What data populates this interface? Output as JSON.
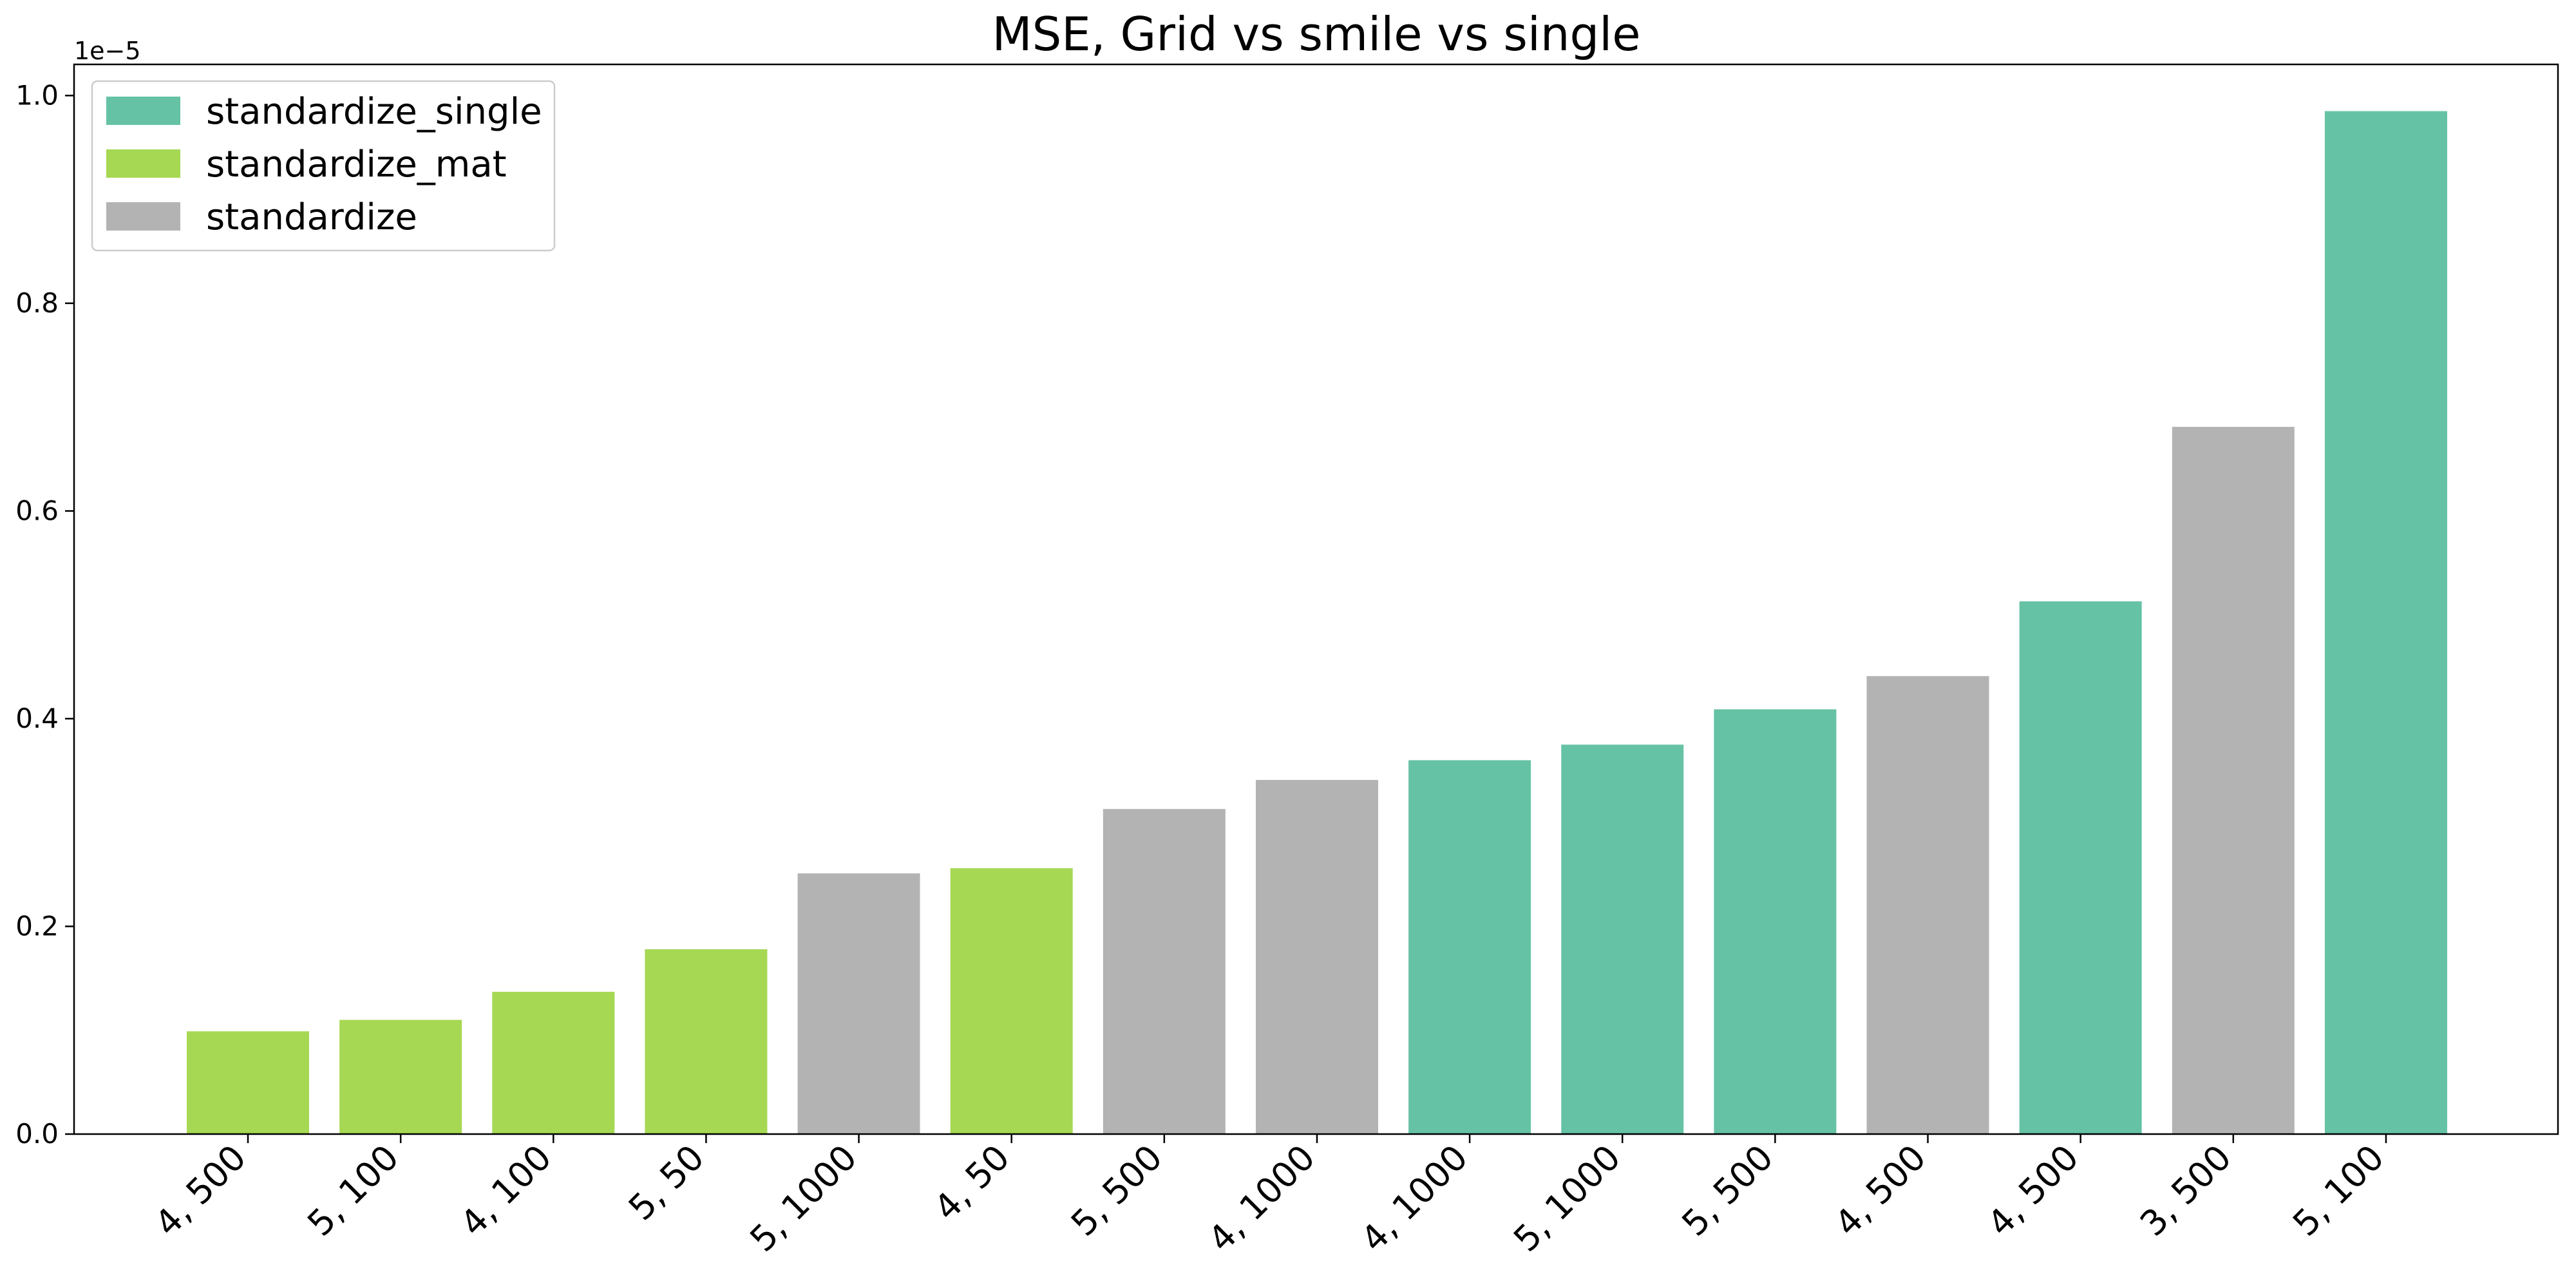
{
  "chart_data": {
    "type": "bar",
    "title": "MSE, Grid vs smile vs single",
    "xlabel": "",
    "ylabel": "",
    "y_scale_label": "1e−5",
    "ylim": [
      0,
      1.03
    ],
    "yticks": [
      0.0,
      0.2,
      0.4,
      0.6,
      0.8,
      1.0
    ],
    "ytick_labels": [
      "0.0",
      "0.2",
      "0.4",
      "0.6",
      "0.8",
      "1.0"
    ],
    "grid": false,
    "legend_position": "top-left",
    "legend": [
      {
        "name": "standardize_single",
        "color": "#66c2a5"
      },
      {
        "name": "standardize_mat",
        "color": "#a6d854"
      },
      {
        "name": "standardize",
        "color": "#b3b3b3"
      }
    ],
    "categories": [
      "4, 500",
      "5, 100",
      "4, 100",
      "5, 50",
      "5, 1000",
      "4, 50",
      "5, 500",
      "4, 1000",
      "4, 1000",
      "5, 1000",
      "5, 500",
      "4, 500",
      "4, 500",
      "3, 500",
      "5, 100"
    ],
    "values": [
      0.099,
      0.11,
      0.137,
      0.178,
      0.251,
      0.256,
      0.313,
      0.341,
      0.36,
      0.375,
      0.409,
      0.441,
      0.513,
      0.681,
      0.985
    ],
    "bar_series": [
      "standardize_mat",
      "standardize_mat",
      "standardize_mat",
      "standardize_mat",
      "standardize",
      "standardize_mat",
      "standardize",
      "standardize",
      "standardize_single",
      "standardize_single",
      "standardize_single",
      "standardize",
      "standardize_single",
      "standardize",
      "standardize_single"
    ]
  }
}
